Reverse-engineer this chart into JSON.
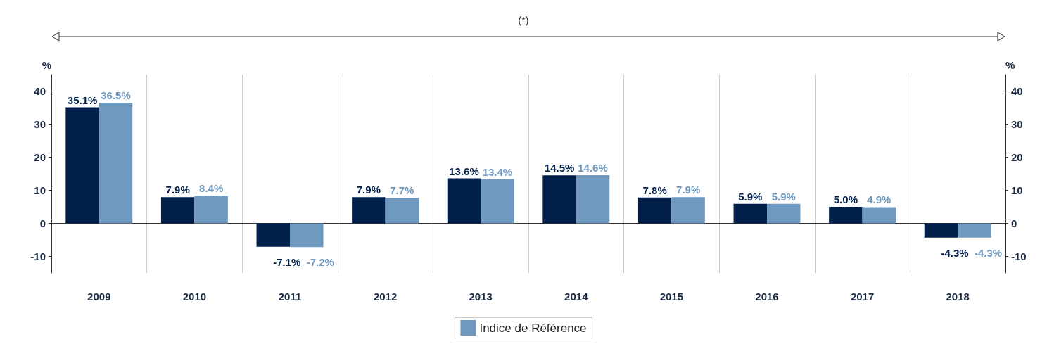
{
  "chart_data": {
    "type": "bar",
    "categories": [
      "2009",
      "2010",
      "2011",
      "2012",
      "2013",
      "2014",
      "2015",
      "2016",
      "2017",
      "2018"
    ],
    "series": [
      {
        "color": "#001f4b",
        "values": [
          35.1,
          7.9,
          -7.1,
          7.9,
          13.6,
          14.5,
          7.8,
          5.9,
          5.0,
          -4.3
        ],
        "value_labels": [
          "35.1%",
          "7.9%",
          "-7.1%",
          "7.9%",
          "13.6%",
          "14.5%",
          "7.8%",
          "5.9%",
          "5.0%",
          "-4.3%"
        ]
      },
      {
        "name": "Indice de Référence",
        "color": "#7099bf",
        "values": [
          36.5,
          8.4,
          -7.2,
          7.7,
          13.4,
          14.6,
          7.9,
          5.9,
          4.9,
          -4.3
        ],
        "value_labels": [
          "36.5%",
          "8.4%",
          "-7.2%",
          "7.7%",
          "13.4%",
          "14.6%",
          "7.9%",
          "5.9%",
          "4.9%",
          "-4.3%"
        ]
      }
    ],
    "ylabel": "%",
    "y2label": "%",
    "ylim": [
      -15,
      45
    ],
    "yticks": [
      -10,
      0,
      10,
      20,
      30,
      40
    ],
    "y2lim": [
      -15,
      45
    ],
    "y2ticks": [
      -10,
      0,
      10,
      20,
      30,
      40
    ],
    "annotations": [
      "(*)"
    ],
    "grid": "x",
    "legend": "bottom"
  }
}
